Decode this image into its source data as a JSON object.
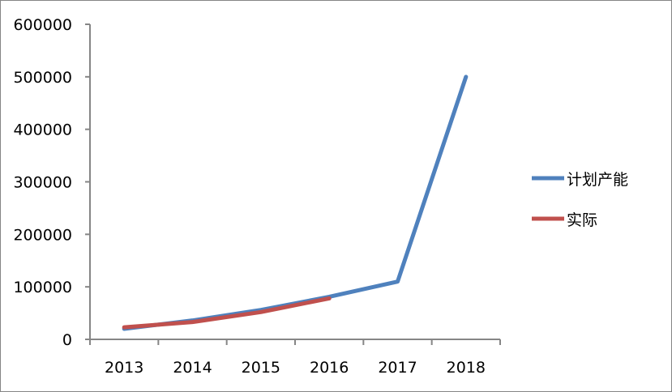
{
  "chart_data": {
    "type": "line",
    "title": "",
    "xlabel": "",
    "ylabel": "",
    "categories": [
      "2013",
      "2014",
      "2015",
      "2016",
      "2017",
      "2018"
    ],
    "ylim": [
      0,
      600000
    ],
    "yticks": [
      "0",
      "100000",
      "200000",
      "300000",
      "400000",
      "500000",
      "600000"
    ],
    "grid": false,
    "legend_position": "right",
    "series": [
      {
        "name": "计划产能",
        "color": "#4f81bd",
        "values": [
          20000,
          36000,
          56000,
          81000,
          110000,
          500000
        ]
      },
      {
        "name": "实际",
        "color": "#c0504d",
        "values": [
          23000,
          33000,
          52000,
          78000,
          null,
          null
        ]
      }
    ]
  }
}
